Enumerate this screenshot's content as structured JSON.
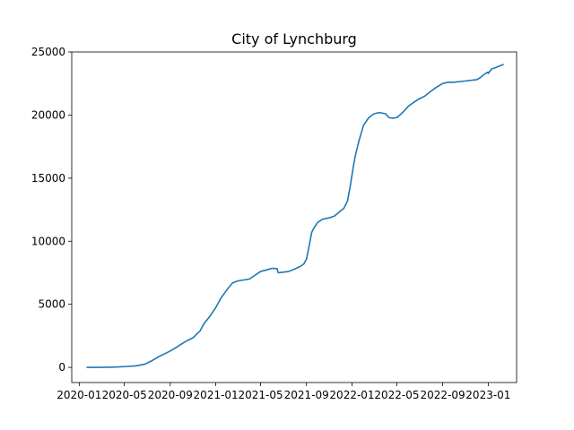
{
  "chart_data": {
    "type": "line",
    "title": "City of Lynchburg",
    "xlabel": "",
    "ylabel": "",
    "x_type": "date",
    "xlim": [
      "2019-12-12",
      "2023-03-18"
    ],
    "ylim": [
      -1200,
      25000
    ],
    "x_ticks": [
      {
        "date": "2020-01-01",
        "label": "2020-01"
      },
      {
        "date": "2020-05-01",
        "label": "2020-05"
      },
      {
        "date": "2020-09-01",
        "label": "2020-09"
      },
      {
        "date": "2021-01-01",
        "label": "2021-01"
      },
      {
        "date": "2021-05-01",
        "label": "2021-05"
      },
      {
        "date": "2021-09-01",
        "label": "2021-09"
      },
      {
        "date": "2022-01-01",
        "label": "2022-01"
      },
      {
        "date": "2022-05-01",
        "label": "2022-05"
      },
      {
        "date": "2022-09-01",
        "label": "2022-09"
      },
      {
        "date": "2023-01-01",
        "label": "2023-01"
      }
    ],
    "y_ticks": [
      {
        "value": 0,
        "label": "0"
      },
      {
        "value": 5000,
        "label": "5000"
      },
      {
        "value": 10000,
        "label": "10000"
      },
      {
        "value": 15000,
        "label": "15000"
      },
      {
        "value": 20000,
        "label": "20000"
      },
      {
        "value": 25000,
        "label": "25000"
      }
    ],
    "grid": false,
    "legend": "none",
    "series": [
      {
        "color": "#1f77b4",
        "x": [
          "2020-01-22",
          "2020-03-01",
          "2020-04-01",
          "2020-05-01",
          "2020-06-01",
          "2020-06-25",
          "2020-07-15",
          "2020-08-01",
          "2020-08-15",
          "2020-09-01",
          "2020-09-15",
          "2020-10-01",
          "2020-10-15",
          "2020-11-01",
          "2020-11-20",
          "2020-12-01",
          "2020-12-15",
          "2021-01-01",
          "2021-01-15",
          "2021-02-01",
          "2021-02-15",
          "2021-03-01",
          "2021-04-01",
          "2021-05-01",
          "2021-05-20",
          "2021-06-01",
          "2021-06-14",
          "2021-06-17",
          "2021-07-01",
          "2021-07-15",
          "2021-08-01",
          "2021-08-15",
          "2021-08-25",
          "2021-09-01",
          "2021-09-08",
          "2021-09-15",
          "2021-09-22",
          "2021-10-01",
          "2021-10-15",
          "2021-11-01",
          "2021-11-15",
          "2021-12-01",
          "2021-12-10",
          "2021-12-20",
          "2021-12-28",
          "2022-01-05",
          "2022-01-10",
          "2022-01-15",
          "2022-01-20",
          "2022-01-25",
          "2022-02-01",
          "2022-02-15",
          "2022-03-01",
          "2022-03-15",
          "2022-04-01",
          "2022-04-10",
          "2022-04-20",
          "2022-05-01",
          "2022-05-15",
          "2022-06-01",
          "2022-06-15",
          "2022-07-01",
          "2022-07-15",
          "2022-08-01",
          "2022-08-15",
          "2022-09-01",
          "2022-09-15",
          "2022-10-01",
          "2022-11-01",
          "2022-12-01",
          "2022-12-10",
          "2022-12-20",
          "2022-12-31",
          "2023-01-01",
          "2023-01-10",
          "2023-01-20",
          "2023-02-01",
          "2023-02-10"
        ],
        "y": [
          0,
          5,
          20,
          60,
          120,
          250,
          550,
          850,
          1050,
          1300,
          1550,
          1850,
          2100,
          2350,
          2900,
          3500,
          4000,
          4750,
          5500,
          6200,
          6700,
          6850,
          7000,
          7600,
          7750,
          7850,
          7830,
          7500,
          7550,
          7600,
          7800,
          8000,
          8200,
          8600,
          9600,
          10700,
          11100,
          11500,
          11750,
          11850,
          12000,
          12400,
          12600,
          13200,
          14500,
          16000,
          16800,
          17400,
          18000,
          18500,
          19200,
          19800,
          20100,
          20200,
          20100,
          19800,
          19750,
          19800,
          20150,
          20700,
          21000,
          21300,
          21500,
          21900,
          22200,
          22500,
          22600,
          22600,
          22700,
          22800,
          22950,
          23200,
          23400,
          23300,
          23650,
          23750,
          23900,
          24000
        ]
      }
    ]
  }
}
